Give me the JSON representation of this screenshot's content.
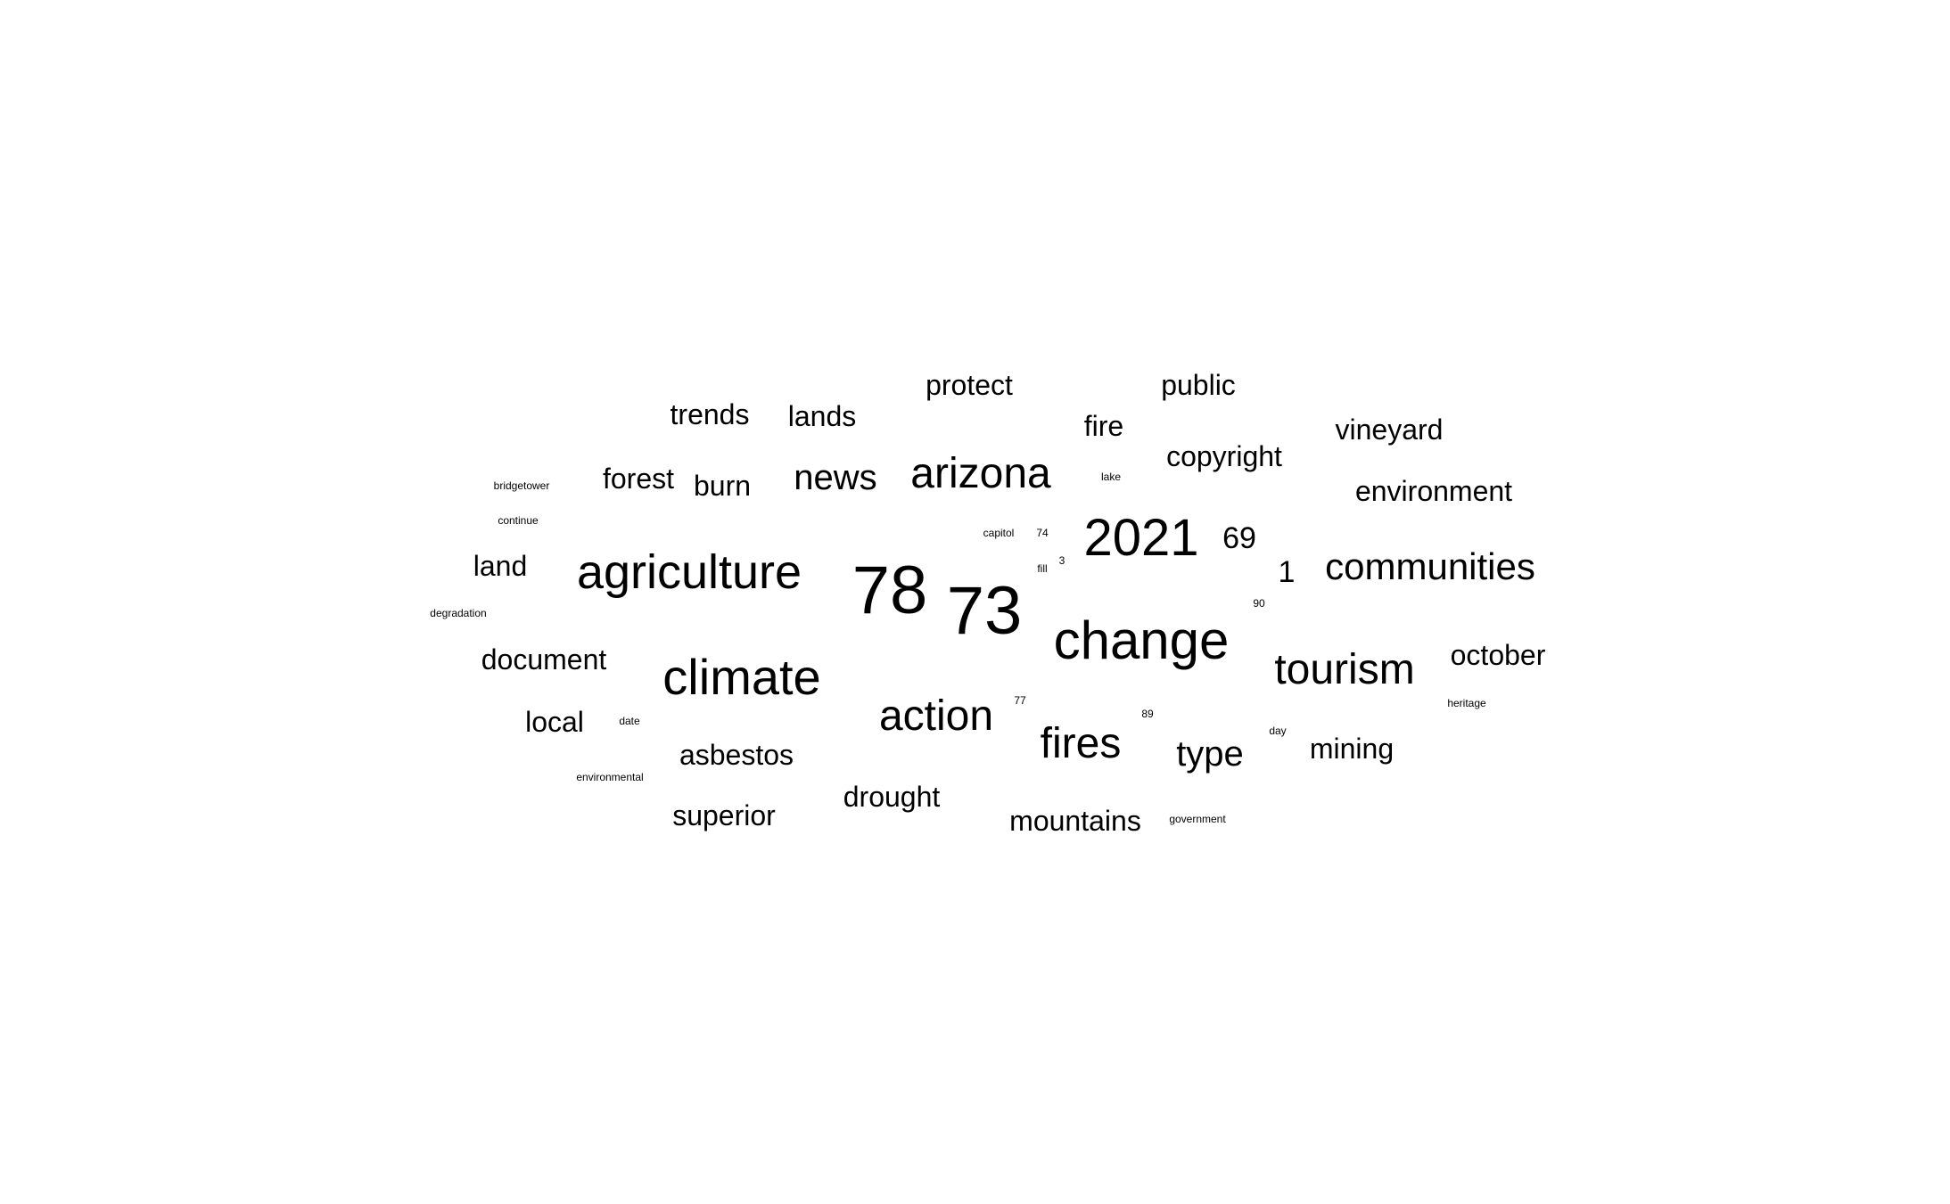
{
  "cloud": {
    "text_color": "#000000",
    "background": "#ffffff",
    "words": [
      {
        "text": "78",
        "weight": 100
      },
      {
        "text": "73",
        "weight": 100
      },
      {
        "text": "change",
        "weight": 80
      },
      {
        "text": "2021",
        "weight": 78
      },
      {
        "text": "agriculture",
        "weight": 76
      },
      {
        "text": "climate",
        "weight": 76
      },
      {
        "text": "arizona",
        "weight": 64
      },
      {
        "text": "tourism",
        "weight": 64
      },
      {
        "text": "action",
        "weight": 60
      },
      {
        "text": "fires",
        "weight": 60
      },
      {
        "text": "communities",
        "weight": 56
      },
      {
        "text": "news",
        "weight": 52
      },
      {
        "text": "type",
        "weight": 52
      },
      {
        "text": "69",
        "weight": 44
      },
      {
        "text": "1",
        "weight": 44
      },
      {
        "text": "land",
        "weight": 40
      },
      {
        "text": "forest",
        "weight": 40
      },
      {
        "text": "burn",
        "weight": 40
      },
      {
        "text": "trends",
        "weight": 40
      },
      {
        "text": "lands",
        "weight": 40
      },
      {
        "text": "protect",
        "weight": 40
      },
      {
        "text": "public",
        "weight": 40
      },
      {
        "text": "fire",
        "weight": 40
      },
      {
        "text": "copyright",
        "weight": 40
      },
      {
        "text": "vineyard",
        "weight": 40
      },
      {
        "text": "environment",
        "weight": 40
      },
      {
        "text": "october",
        "weight": 40
      },
      {
        "text": "document",
        "weight": 40
      },
      {
        "text": "local",
        "weight": 40
      },
      {
        "text": "asbestos",
        "weight": 40
      },
      {
        "text": "superior",
        "weight": 40
      },
      {
        "text": "drought",
        "weight": 40
      },
      {
        "text": "mountains",
        "weight": 40
      },
      {
        "text": "mining",
        "weight": 40
      },
      {
        "text": "bridgetower",
        "weight": 10
      },
      {
        "text": "continue",
        "weight": 10
      },
      {
        "text": "degradation",
        "weight": 10
      },
      {
        "text": "date",
        "weight": 10
      },
      {
        "text": "environmental",
        "weight": 10
      },
      {
        "text": "capitol",
        "weight": 10
      },
      {
        "text": "74",
        "weight": 10
      },
      {
        "text": "3",
        "weight": 10
      },
      {
        "text": "fill",
        "weight": 10
      },
      {
        "text": "lake",
        "weight": 10
      },
      {
        "text": "90",
        "weight": 10
      },
      {
        "text": "77",
        "weight": 10
      },
      {
        "text": "89",
        "weight": 10
      },
      {
        "text": "day",
        "weight": 10
      },
      {
        "text": "heritage",
        "weight": 10
      },
      {
        "text": "government",
        "weight": 10
      }
    ]
  }
}
